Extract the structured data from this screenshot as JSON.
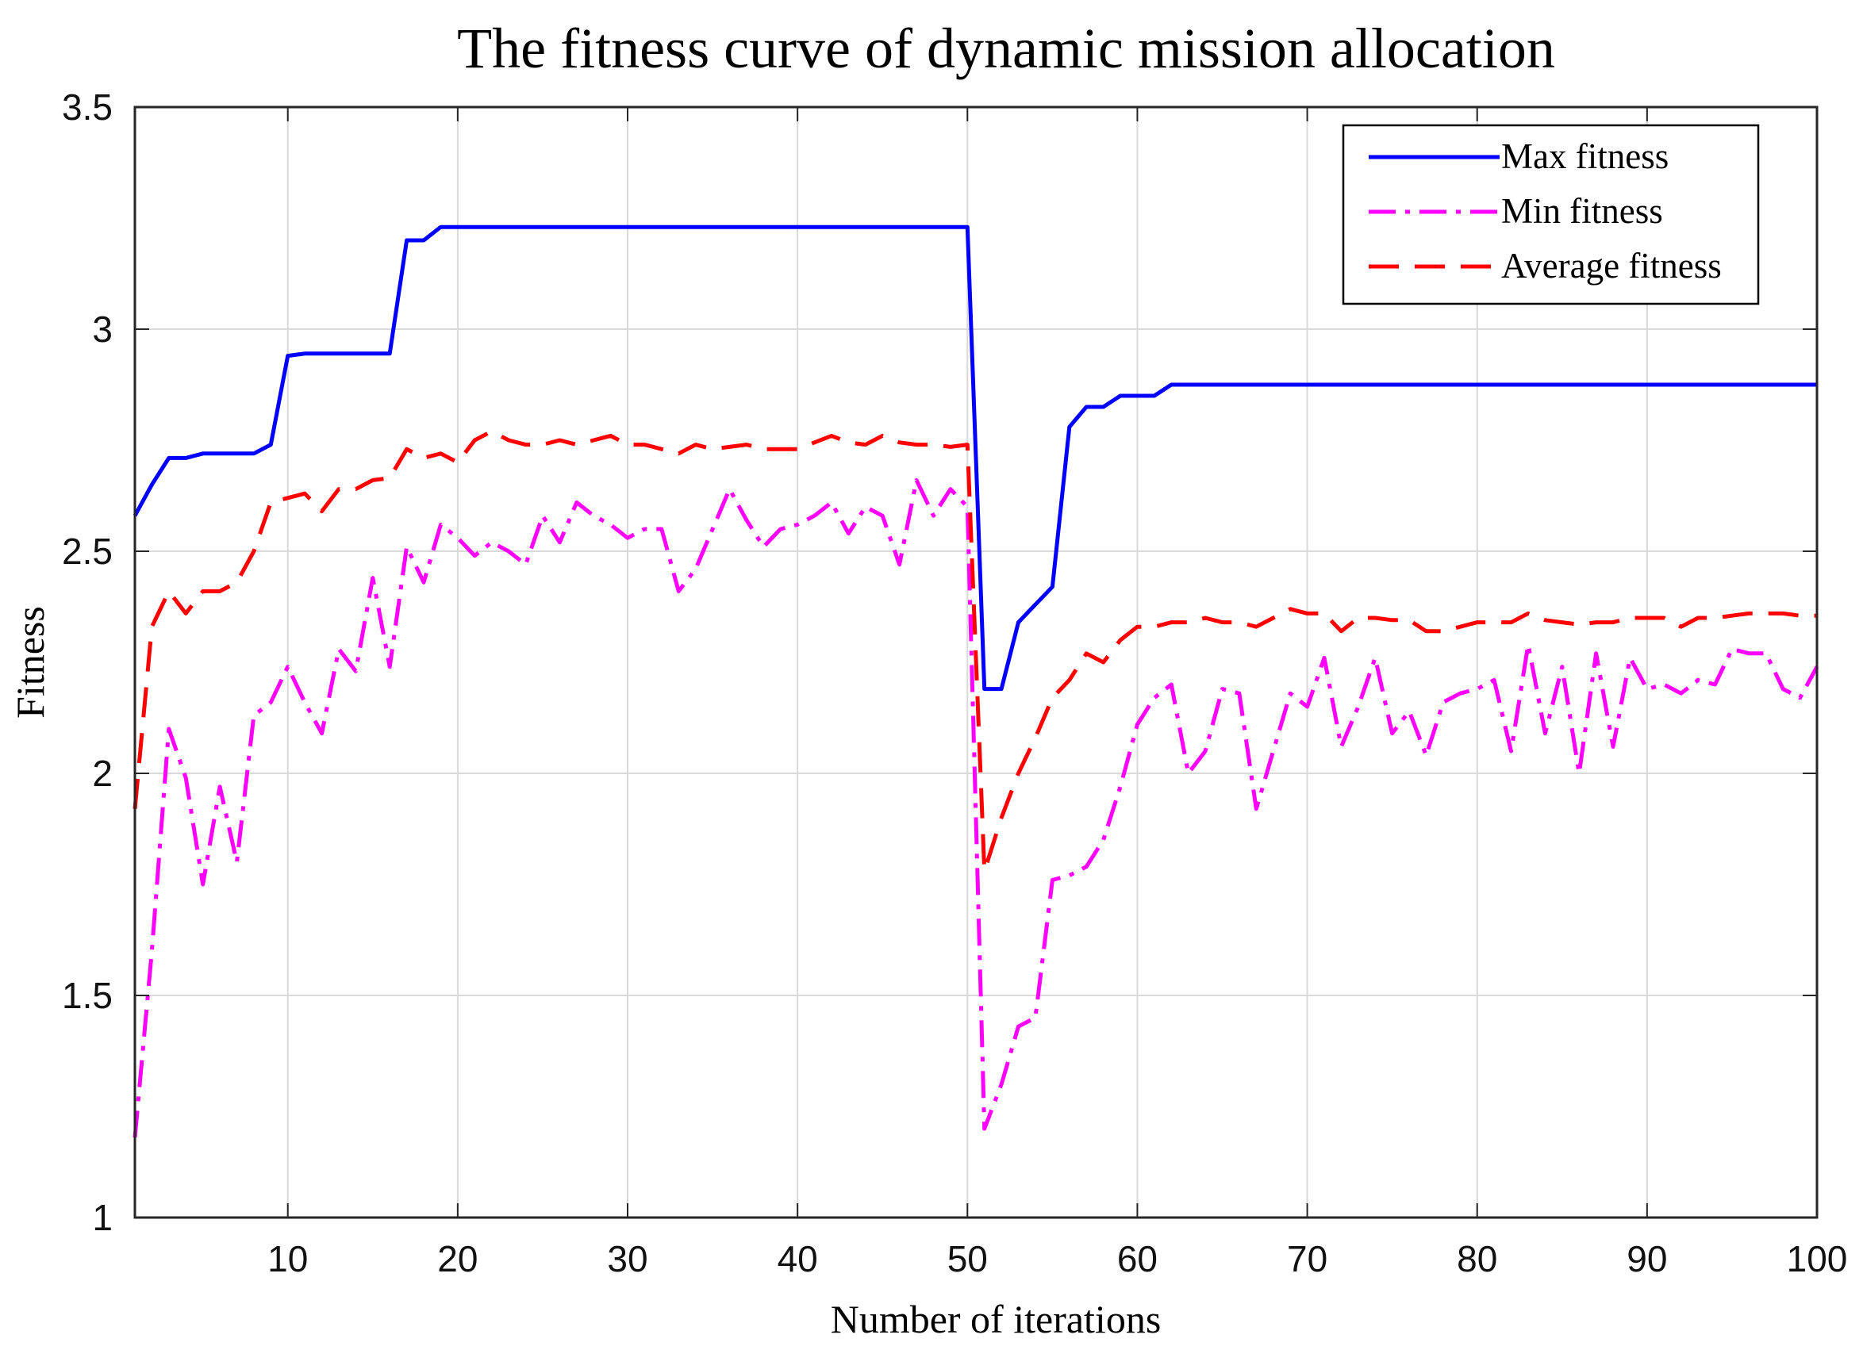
{
  "chart_data": {
    "type": "line",
    "title": "The fitness curve of dynamic mission allocation",
    "xlabel": "Number of iterations",
    "ylabel": "Fitness",
    "xlim": [
      1,
      100
    ],
    "ylim": [
      1,
      3.5
    ],
    "xticks": [
      10,
      20,
      30,
      40,
      50,
      60,
      70,
      80,
      90,
      100
    ],
    "yticks": [
      1,
      1.5,
      2,
      2.5,
      3,
      3.5
    ],
    "xtick_labels": [
      "10",
      "20",
      "30",
      "40",
      "50",
      "60",
      "70",
      "80",
      "90",
      "100"
    ],
    "ytick_labels": [
      "1",
      "1.5",
      "2",
      "2.5",
      "3",
      "3.5"
    ],
    "grid": true,
    "legend_position": "top-right",
    "series": [
      {
        "name": "Max fitness",
        "color": "#0000ff",
        "style": "solid",
        "x": [
          1,
          2,
          3,
          4,
          5,
          6,
          7,
          8,
          9,
          10,
          11,
          12,
          13,
          14,
          15,
          16,
          17,
          18,
          19,
          20,
          21,
          22,
          23,
          24,
          25,
          26,
          27,
          28,
          29,
          30,
          31,
          32,
          33,
          34,
          35,
          36,
          37,
          38,
          39,
          40,
          41,
          42,
          43,
          44,
          45,
          46,
          47,
          48,
          49,
          50,
          51,
          52,
          53,
          54,
          55,
          56,
          57,
          58,
          59,
          60,
          61,
          62,
          63,
          64,
          65,
          66,
          67,
          68,
          69,
          70,
          71,
          72,
          73,
          74,
          75,
          76,
          77,
          78,
          79,
          80,
          81,
          82,
          83,
          84,
          85,
          86,
          87,
          88,
          89,
          90,
          91,
          92,
          93,
          94,
          95,
          96,
          97,
          98,
          99,
          100
        ],
        "values": [
          2.58,
          2.65,
          2.71,
          2.71,
          2.72,
          2.72,
          2.72,
          2.72,
          2.74,
          2.94,
          2.945,
          2.945,
          2.945,
          2.945,
          2.945,
          2.945,
          3.2,
          3.2,
          3.23,
          3.23,
          3.23,
          3.23,
          3.23,
          3.23,
          3.23,
          3.23,
          3.23,
          3.23,
          3.23,
          3.23,
          3.23,
          3.23,
          3.23,
          3.23,
          3.23,
          3.23,
          3.23,
          3.23,
          3.23,
          3.23,
          3.23,
          3.23,
          3.23,
          3.23,
          3.23,
          3.23,
          3.23,
          3.23,
          3.23,
          3.23,
          2.19,
          2.19,
          2.34,
          2.38,
          2.42,
          2.78,
          2.825,
          2.825,
          2.85,
          2.85,
          2.85,
          2.875,
          2.875,
          2.875,
          2.875,
          2.875,
          2.875,
          2.875,
          2.875,
          2.875,
          2.875,
          2.875,
          2.875,
          2.875,
          2.875,
          2.875,
          2.875,
          2.875,
          2.875,
          2.875,
          2.875,
          2.875,
          2.875,
          2.875,
          2.875,
          2.875,
          2.875,
          2.875,
          2.875,
          2.875,
          2.875,
          2.875,
          2.875,
          2.875,
          2.875,
          2.875,
          2.875,
          2.875,
          2.875,
          2.875
        ]
      },
      {
        "name": "Min fitness",
        "color": "#ff00ff",
        "style": "dashdot",
        "x": [
          1,
          2,
          3,
          4,
          5,
          6,
          7,
          8,
          9,
          10,
          11,
          12,
          13,
          14,
          15,
          16,
          17,
          18,
          19,
          20,
          21,
          22,
          23,
          24,
          25,
          26,
          27,
          28,
          29,
          30,
          31,
          32,
          33,
          34,
          35,
          36,
          37,
          38,
          39,
          40,
          41,
          42,
          43,
          44,
          45,
          46,
          47,
          48,
          49,
          50,
          51,
          52,
          53,
          54,
          55,
          56,
          57,
          58,
          59,
          60,
          61,
          62,
          63,
          64,
          65,
          66,
          67,
          68,
          69,
          70,
          71,
          72,
          73,
          74,
          75,
          76,
          77,
          78,
          79,
          80,
          81,
          82,
          83,
          84,
          85,
          86,
          87,
          88,
          89,
          90,
          91,
          92,
          93,
          94,
          95,
          96,
          97,
          98,
          99,
          100
        ],
        "values": [
          1.18,
          1.6,
          2.1,
          1.99,
          1.75,
          1.97,
          1.8,
          2.13,
          2.16,
          2.24,
          2.16,
          2.09,
          2.28,
          2.23,
          2.44,
          2.24,
          2.51,
          2.43,
          2.56,
          2.53,
          2.49,
          2.52,
          2.5,
          2.47,
          2.58,
          2.52,
          2.61,
          2.58,
          2.56,
          2.53,
          2.55,
          2.55,
          2.41,
          2.46,
          2.55,
          2.64,
          2.57,
          2.51,
          2.55,
          2.56,
          2.58,
          2.61,
          2.54,
          2.6,
          2.58,
          2.47,
          2.66,
          2.58,
          2.64,
          2.6,
          1.2,
          1.3,
          1.43,
          1.45,
          1.76,
          1.77,
          1.79,
          1.85,
          1.97,
          2.11,
          2.17,
          2.2,
          2.0,
          2.05,
          2.19,
          2.18,
          1.92,
          2.05,
          2.18,
          2.15,
          2.26,
          2.06,
          2.15,
          2.26,
          2.09,
          2.14,
          2.04,
          2.16,
          2.18,
          2.19,
          2.21,
          2.05,
          2.29,
          2.09,
          2.24,
          2.0,
          2.27,
          2.06,
          2.26,
          2.19,
          2.2,
          2.18,
          2.21,
          2.2,
          2.28,
          2.27,
          2.27,
          2.19,
          2.17,
          2.24
        ]
      },
      {
        "name": "Average fitness",
        "color": "#ff0000",
        "style": "dashed",
        "x": [
          1,
          2,
          3,
          4,
          5,
          6,
          7,
          8,
          9,
          10,
          11,
          12,
          13,
          14,
          15,
          16,
          17,
          18,
          19,
          20,
          21,
          22,
          23,
          24,
          25,
          26,
          27,
          28,
          29,
          30,
          31,
          32,
          33,
          34,
          35,
          36,
          37,
          38,
          39,
          40,
          41,
          42,
          43,
          44,
          45,
          46,
          47,
          48,
          49,
          50,
          51,
          52,
          53,
          54,
          55,
          56,
          57,
          58,
          59,
          60,
          61,
          62,
          63,
          64,
          65,
          66,
          67,
          68,
          69,
          70,
          71,
          72,
          73,
          74,
          75,
          76,
          77,
          78,
          79,
          80,
          81,
          82,
          83,
          84,
          85,
          86,
          87,
          88,
          89,
          90,
          91,
          92,
          93,
          94,
          95,
          96,
          97,
          98,
          99,
          100
        ],
        "values": [
          1.92,
          2.33,
          2.41,
          2.36,
          2.41,
          2.41,
          2.43,
          2.5,
          2.61,
          2.62,
          2.63,
          2.59,
          2.64,
          2.64,
          2.66,
          2.665,
          2.73,
          2.71,
          2.72,
          2.7,
          2.75,
          2.77,
          2.75,
          2.74,
          2.74,
          2.75,
          2.74,
          2.75,
          2.76,
          2.74,
          2.74,
          2.73,
          2.72,
          2.74,
          2.73,
          2.735,
          2.74,
          2.73,
          2.73,
          2.73,
          2.745,
          2.76,
          2.745,
          2.74,
          2.76,
          2.745,
          2.74,
          2.74,
          2.735,
          2.74,
          1.78,
          1.9,
          2.0,
          2.08,
          2.17,
          2.21,
          2.27,
          2.25,
          2.3,
          2.33,
          2.33,
          2.34,
          2.34,
          2.35,
          2.34,
          2.34,
          2.33,
          2.35,
          2.37,
          2.36,
          2.36,
          2.32,
          2.35,
          2.35,
          2.345,
          2.345,
          2.32,
          2.32,
          2.33,
          2.34,
          2.34,
          2.34,
          2.36,
          2.345,
          2.34,
          2.335,
          2.34,
          2.34,
          2.35,
          2.35,
          2.35,
          2.33,
          2.35,
          2.35,
          2.355,
          2.36,
          2.36,
          2.36,
          2.355,
          2.355
        ]
      }
    ]
  }
}
